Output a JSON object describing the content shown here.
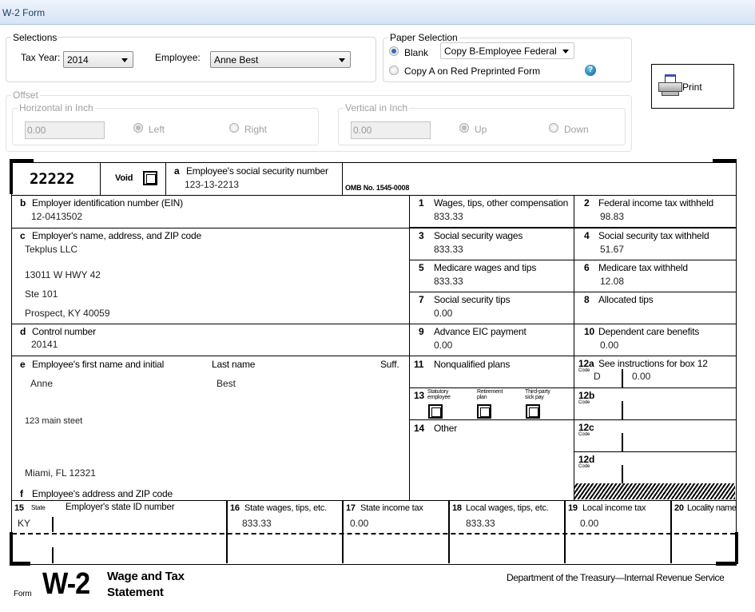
{
  "window": {
    "title": "W-2 Form"
  },
  "selections": {
    "legend": "Selections",
    "tax_year_label": "Tax Year:",
    "tax_year": "2014",
    "employee_label": "Employee:",
    "employee": "Anne Best"
  },
  "paper": {
    "legend": "Paper Selection",
    "blank_label": "Blank",
    "blank_selected": true,
    "copy_select": "Copy B-Employee Federal",
    "red_label": "Copy A on Red Preprinted Form"
  },
  "print": {
    "label": "Print"
  },
  "offset": {
    "legend": "Offset",
    "horizontal": {
      "legend": "Horizontal in Inch",
      "value": "0.00",
      "left": "Left",
      "right": "Right"
    },
    "vertical": {
      "legend": "Vertical in Inch",
      "value": "0.00",
      "up": "Up",
      "down": "Down"
    }
  },
  "form": {
    "code": "22222",
    "void": "Void",
    "a": {
      "label": "Employee's social security number",
      "letter": "a",
      "value": "123-13-2213"
    },
    "omb": "OMB No. 1545-0008",
    "b": {
      "letter": "b",
      "label": "Employer identification number (EIN)",
      "value": "12-0413502"
    },
    "c": {
      "letter": "c",
      "label": "Employer's name, address, and ZIP code",
      "lines": [
        "Tekplus LLC",
        "13011 W HWY 42",
        "Ste 101",
        "Prospect, KY 40059"
      ]
    },
    "d": {
      "letter": "d",
      "label": "Control number",
      "value": "20141"
    },
    "e": {
      "letter": "e",
      "label": "Employee's first name and initial",
      "last_label": "Last name",
      "suff_label": "Suff.",
      "first": "Anne",
      "last": "Best",
      "address1": "123 main steet",
      "address2": "Miami, FL 12321"
    },
    "f": {
      "letter": "f",
      "label": "Employee's address and ZIP code"
    },
    "boxes": [
      {
        "num": "1",
        "label": "Wages, tips, other compensation",
        "value": "833.33"
      },
      {
        "num": "2",
        "label": "Federal income tax withheld",
        "value": "98.83"
      },
      {
        "num": "3",
        "label": "Social security wages",
        "value": "833.33"
      },
      {
        "num": "4",
        "label": "Social security tax withheld",
        "value": "51.67"
      },
      {
        "num": "5",
        "label": "Medicare wages and tips",
        "value": "833.33"
      },
      {
        "num": "6",
        "label": "Medicare tax withheld",
        "value": "12.08"
      },
      {
        "num": "7",
        "label": "Social security tips",
        "value": "0.00"
      },
      {
        "num": "8",
        "label": "Allocated tips",
        "value": ""
      },
      {
        "num": "9",
        "label": "Advance EIC payment",
        "value": "0.00"
      },
      {
        "num": "10",
        "label": "Dependent care benefits",
        "value": "0.00"
      }
    ],
    "box11": {
      "num": "11",
      "label": "Nonqualified plans"
    },
    "box12": {
      "a": {
        "num": "12a",
        "label": "See instructions for box 12",
        "code": "D",
        "value": "0.00"
      },
      "b": "12b",
      "c": "12c",
      "d": "12d",
      "code_text": "Code"
    },
    "box13": {
      "num": "13",
      "statutory": "Statutory employee",
      "retirement": "Retirement plan",
      "thirdparty": "Third-party sick pay"
    },
    "box14": {
      "num": "14",
      "label": "Other"
    },
    "state": {
      "h15": "15",
      "h15s": "State",
      "h15b": "Employer's state ID number",
      "h16": "16",
      "h16l": "State wages, tips, etc.",
      "h17": "17",
      "h17l": "State income tax",
      "h18": "18",
      "h18l": "Local wages, tips, etc.",
      "h19": "19",
      "h19l": "Local income tax",
      "h20": "20",
      "h20l": "Locality name",
      "row1": {
        "state": "KY",
        "state_wages": "833.33",
        "state_tax": "0.00",
        "local_wages": "833.33",
        "local_tax": "0.00"
      }
    },
    "footer": {
      "form": "Form",
      "w2": "W-2",
      "title1": "Wage and Tax",
      "title2": "Statement",
      "dept": "Department of the Treasury—Internal Revenue Service"
    }
  }
}
